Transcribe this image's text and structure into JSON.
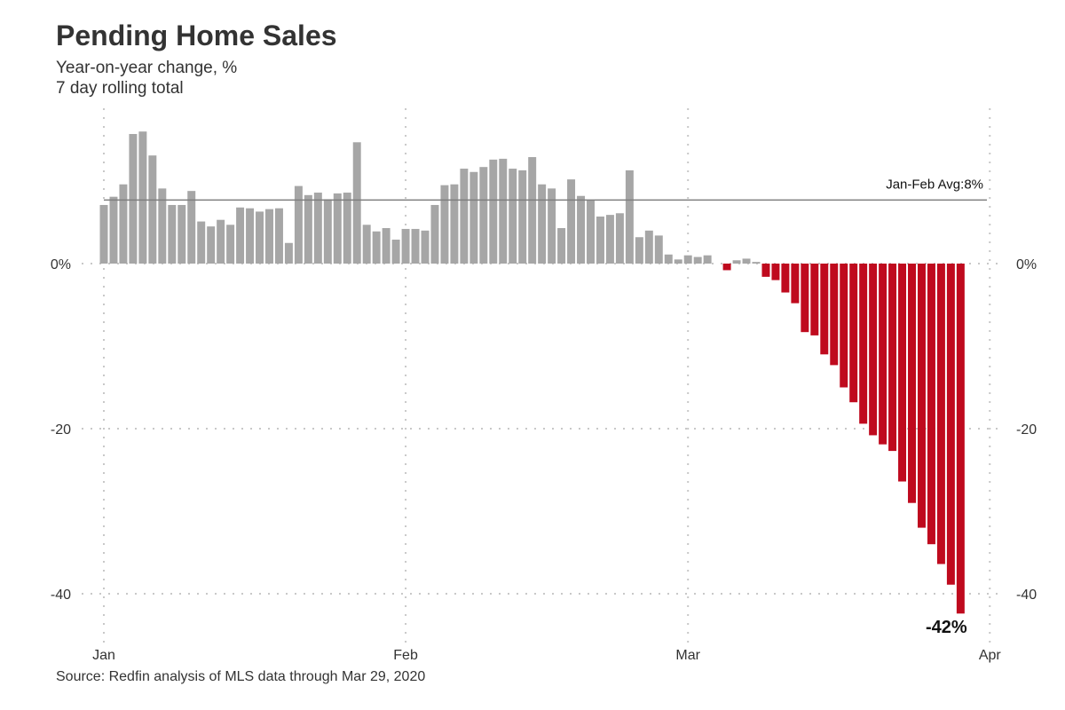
{
  "chart_data": {
    "type": "bar",
    "title": "Pending Home Sales",
    "subtitle": [
      "Year-on-year change, %",
      "7 day rolling total"
    ],
    "source": "Source: Redfin analysis of MLS data through Mar 29, 2020",
    "xlabel": "",
    "ylabel": "",
    "x_start": "2020-01-01",
    "x_end": "2020-03-29",
    "x_ticks": [
      {
        "label": "Jan",
        "day": 0
      },
      {
        "label": "Feb",
        "day": 31
      },
      {
        "label": "Mar",
        "day": 60
      },
      {
        "label": "Apr",
        "day": 91
      }
    ],
    "y_ticks": [
      {
        "value": 0,
        "label": "0%"
      },
      {
        "value": -20,
        "label": "-20"
      },
      {
        "value": -40,
        "label": "-40"
      }
    ],
    "ylim": [
      -45,
      19
    ],
    "xlim_days": [
      -1,
      92
    ],
    "grid": true,
    "colors": {
      "positive": "#a6a6a6",
      "negative": "#bf0a1e",
      "avg_line": "#7f7f7f"
    },
    "values": [
      7.1,
      8.1,
      9.6,
      15.7,
      16.0,
      13.1,
      9.1,
      7.1,
      7.1,
      8.8,
      5.1,
      4.5,
      5.3,
      4.7,
      6.8,
      6.7,
      6.3,
      6.6,
      6.7,
      2.5,
      9.4,
      8.3,
      8.6,
      7.8,
      8.5,
      8.6,
      14.7,
      4.7,
      3.9,
      4.3,
      2.9,
      4.2,
      4.2,
      4.0,
      7.1,
      9.5,
      9.6,
      11.5,
      11.1,
      11.7,
      12.6,
      12.7,
      11.5,
      11.3,
      12.9,
      9.6,
      9.1,
      4.3,
      10.2,
      8.2,
      7.7,
      5.7,
      5.9,
      6.1,
      11.3,
      3.2,
      4.0,
      3.4,
      1.1,
      0.5,
      1.0,
      0.8,
      1.0,
      0,
      -0.8,
      0.4,
      0.6,
      0.2,
      -1.6,
      -2.0,
      -3.5,
      -4.8,
      -8.3,
      -8.7,
      -11.0,
      -12.3,
      -15.0,
      -16.8,
      -19.4,
      -20.8,
      -21.9,
      -22.7,
      -26.4,
      -29.0,
      -32.0,
      -34.0,
      -36.4,
      -38.9,
      -42.4
    ],
    "reference_line": {
      "value": 7.7,
      "label": "Jan-Feb Avg:8%"
    },
    "annotations": [
      {
        "label": "-42%",
        "day": 88
      }
    ]
  }
}
